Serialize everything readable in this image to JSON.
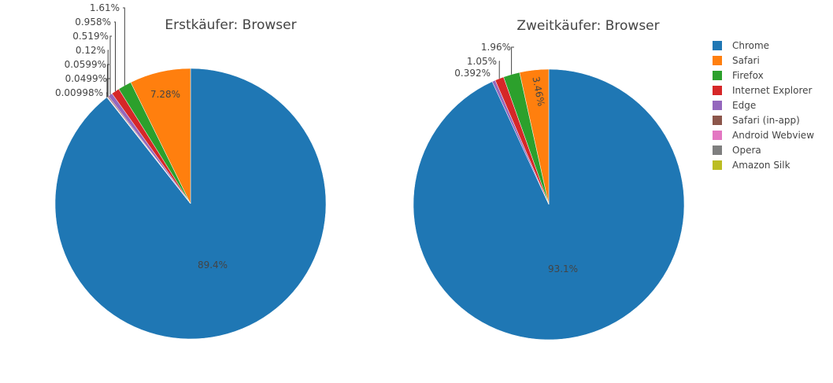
{
  "chart_data": [
    {
      "type": "pie",
      "title": "Erstkäufer: Browser",
      "categories": [
        "Chrome",
        "Safari",
        "Firefox",
        "Internet Explorer",
        "Edge",
        "Safari (in-app)",
        "Android Webview",
        "Opera",
        "Amazon Silk"
      ],
      "values": [
        89.4,
        7.28,
        1.61,
        0.958,
        0.519,
        0.12,
        0.0599,
        0.0499,
        0.00998
      ],
      "labels": [
        "89.4%",
        "7.28%",
        "1.61%",
        "0.958%",
        "0.519%",
        "0.12%",
        "0.0599%",
        "0.0499%",
        "0.00998%"
      ]
    },
    {
      "type": "pie",
      "title": "Zweitkäufer: Browser",
      "categories": [
        "Chrome",
        "Safari",
        "Firefox",
        "Internet Explorer",
        "Edge"
      ],
      "values": [
        93.1,
        3.46,
        1.96,
        1.05,
        0.392
      ],
      "labels": [
        "93.1%",
        "3.46%",
        "1.96%",
        "1.05%",
        "0.392%"
      ]
    }
  ],
  "legend": {
    "items": [
      {
        "label": "Chrome",
        "color": "#1f77b4"
      },
      {
        "label": "Safari",
        "color": "#ff7f0e"
      },
      {
        "label": "Firefox",
        "color": "#2ca02c"
      },
      {
        "label": "Internet Explorer",
        "color": "#d62728"
      },
      {
        "label": "Edge",
        "color": "#9467bd"
      },
      {
        "label": "Safari (in-app)",
        "color": "#8c564b"
      },
      {
        "label": "Android Webview",
        "color": "#e377c2"
      },
      {
        "label": "Opera",
        "color": "#7f7f7f"
      },
      {
        "label": "Amazon Silk",
        "color": "#bcbd22"
      }
    ]
  }
}
